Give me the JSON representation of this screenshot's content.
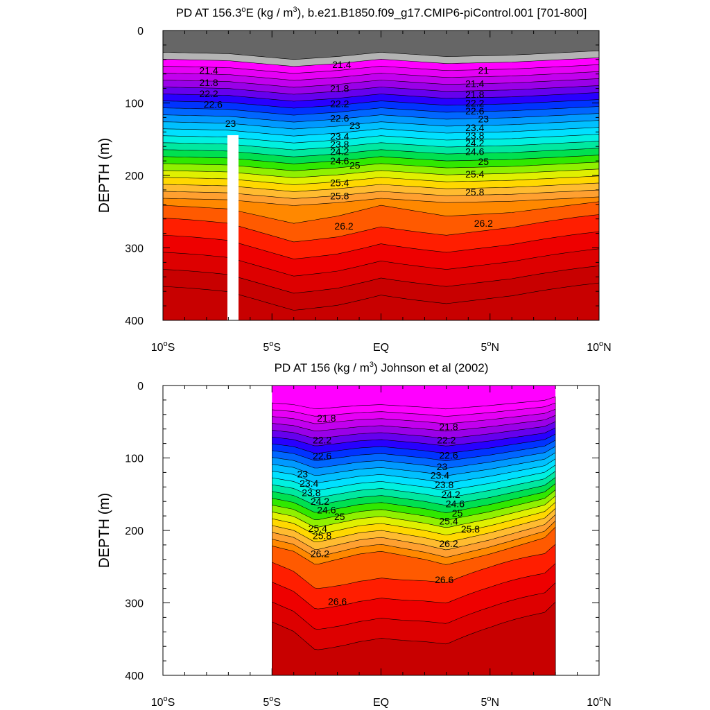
{
  "chart_data": [
    {
      "type": "contour",
      "panel": "model",
      "title": "PD AT 156.3°E (kg / m³), b.e21.B1850.f09_g17.CMIP6-piControl.001 [701-800]",
      "title_parts": [
        "PD AT 156.3",
        "o",
        "E (kg / m",
        "3",
        "), b.e21.B1850.f09_g17.CMIP6-piControl.001 [701-800]"
      ],
      "ylabel": "DEPTH (m)",
      "xlabel": "",
      "xlim": [
        -10,
        10
      ],
      "ylim": [
        400,
        0
      ],
      "x_ticks": [
        {
          "value": -10,
          "num": "10",
          "deg": "o",
          "hemi": "S"
        },
        {
          "value": -5,
          "num": "5",
          "deg": "o",
          "hemi": "S"
        },
        {
          "value": 0,
          "num": "EQ",
          "deg": "",
          "hemi": ""
        },
        {
          "value": 5,
          "num": "5",
          "deg": "o",
          "hemi": "N"
        },
        {
          "value": 10,
          "num": "10",
          "deg": "o",
          "hemi": "N"
        }
      ],
      "y_ticks": [
        "0",
        "100",
        "200",
        "300",
        "400"
      ],
      "data_extent_x": [
        -10,
        10
      ],
      "data_gap_x": [
        -6.7,
        -6.2
      ],
      "data_gap_top_depth": 145,
      "contour_labels": [
        {
          "text": "21.4",
          "x": -7.9,
          "y": 55
        },
        {
          "text": "21.8",
          "x": -7.9,
          "y": 72
        },
        {
          "text": "22.2",
          "x": -7.9,
          "y": 87
        },
        {
          "text": "22.6",
          "x": -7.7,
          "y": 102
        },
        {
          "text": "23",
          "x": -6.9,
          "y": 128
        },
        {
          "text": "21.4",
          "x": -1.8,
          "y": 47
        },
        {
          "text": "21.8",
          "x": -1.9,
          "y": 80
        },
        {
          "text": "22.2",
          "x": -1.9,
          "y": 101
        },
        {
          "text": "22.6",
          "x": -1.9,
          "y": 121
        },
        {
          "text": "23",
          "x": -1.2,
          "y": 131
        },
        {
          "text": "23.4",
          "x": -1.9,
          "y": 146
        },
        {
          "text": "23.8",
          "x": -1.9,
          "y": 157
        },
        {
          "text": "24.2",
          "x": -1.9,
          "y": 167
        },
        {
          "text": "24.6",
          "x": -1.9,
          "y": 180
        },
        {
          "text": "25",
          "x": -1.2,
          "y": 186
        },
        {
          "text": "25.4",
          "x": -1.9,
          "y": 210
        },
        {
          "text": "25.8",
          "x": -1.9,
          "y": 228
        },
        {
          "text": "26.2",
          "x": -1.7,
          "y": 270
        },
        {
          "text": "21",
          "x": 4.7,
          "y": 55
        },
        {
          "text": "21.4",
          "x": 4.3,
          "y": 73
        },
        {
          "text": "21.8",
          "x": 4.3,
          "y": 88
        },
        {
          "text": "22.2",
          "x": 4.3,
          "y": 100
        },
        {
          "text": "22.6",
          "x": 4.3,
          "y": 111
        },
        {
          "text": "23",
          "x": 4.7,
          "y": 122
        },
        {
          "text": "23.4",
          "x": 4.3,
          "y": 134
        },
        {
          "text": "23.8",
          "x": 4.3,
          "y": 145
        },
        {
          "text": "24.2",
          "x": 4.3,
          "y": 155
        },
        {
          "text": "24.6",
          "x": 4.3,
          "y": 167
        },
        {
          "text": "25",
          "x": 4.7,
          "y": 181
        },
        {
          "text": "25.4",
          "x": 4.3,
          "y": 198
        },
        {
          "text": "25.8",
          "x": 4.3,
          "y": 223
        },
        {
          "text": "26.2",
          "x": 4.7,
          "y": 266
        }
      ]
    },
    {
      "type": "contour",
      "panel": "observations",
      "title": "PD AT 156 (kg / m³) Johnson et al (2002)",
      "title_parts": [
        "PD AT 156 (kg / m",
        "3",
        ") Johnson et al (2002)"
      ],
      "ylabel": "DEPTH (m)",
      "xlabel": "",
      "xlim": [
        -10,
        10
      ],
      "ylim": [
        400,
        0
      ],
      "x_ticks": [
        {
          "value": -10,
          "num": "10",
          "deg": "o",
          "hemi": "S"
        },
        {
          "value": -5,
          "num": "5",
          "deg": "o",
          "hemi": "S"
        },
        {
          "value": 0,
          "num": "EQ",
          "deg": "",
          "hemi": ""
        },
        {
          "value": 5,
          "num": "5",
          "deg": "o",
          "hemi": "N"
        },
        {
          "value": 10,
          "num": "10",
          "deg": "o",
          "hemi": "N"
        }
      ],
      "y_ticks": [
        "0",
        "100",
        "200",
        "300",
        "400"
      ],
      "data_extent_x": [
        -5,
        8
      ],
      "contour_labels": [
        {
          "text": "21.8",
          "x": -2.5,
          "y": 45
        },
        {
          "text": "22.2",
          "x": -2.7,
          "y": 75
        },
        {
          "text": "22.6",
          "x": -2.7,
          "y": 97
        },
        {
          "text": "23",
          "x": -3.6,
          "y": 122
        },
        {
          "text": "23.4",
          "x": -3.3,
          "y": 135
        },
        {
          "text": "23.8",
          "x": -3.2,
          "y": 148
        },
        {
          "text": "24.2",
          "x": -2.8,
          "y": 160
        },
        {
          "text": "24.6",
          "x": -2.5,
          "y": 172
        },
        {
          "text": "25",
          "x": -1.9,
          "y": 181
        },
        {
          "text": "25.4",
          "x": -2.9,
          "y": 197
        },
        {
          "text": "25.8",
          "x": -2.7,
          "y": 207
        },
        {
          "text": "26.2",
          "x": -2.8,
          "y": 232
        },
        {
          "text": "26.6",
          "x": -2.0,
          "y": 298
        },
        {
          "text": "21.8",
          "x": 3.1,
          "y": 57
        },
        {
          "text": "22.2",
          "x": 3.0,
          "y": 75
        },
        {
          "text": "22.6",
          "x": 3.1,
          "y": 96
        },
        {
          "text": "23",
          "x": 2.8,
          "y": 112
        },
        {
          "text": "23.4",
          "x": 2.7,
          "y": 124
        },
        {
          "text": "23.8",
          "x": 2.9,
          "y": 137
        },
        {
          "text": "24.2",
          "x": 3.2,
          "y": 150
        },
        {
          "text": "24.6",
          "x": 3.4,
          "y": 163
        },
        {
          "text": "25",
          "x": 3.5,
          "y": 176
        },
        {
          "text": "25.4",
          "x": 3.1,
          "y": 187
        },
        {
          "text": "25.8",
          "x": 4.1,
          "y": 198
        },
        {
          "text": "26.2",
          "x": 3.1,
          "y": 218
        },
        {
          "text": "26.6",
          "x": 2.9,
          "y": 268
        }
      ]
    }
  ]
}
